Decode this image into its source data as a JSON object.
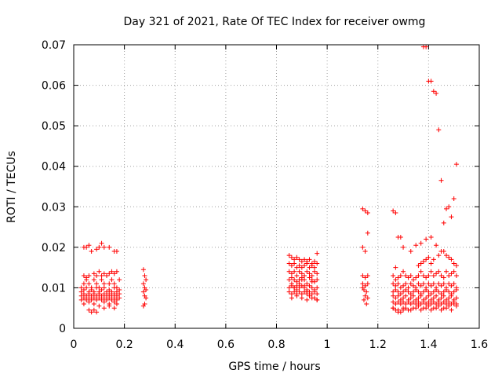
{
  "chart_data": {
    "type": "scatter",
    "title": "Day 321 of 2021, Rate Of TEC Index for receiver owmg",
    "xlabel": "GPS time / hours",
    "ylabel": "ROTI / TECUs",
    "xlim": [
      0,
      1.6
    ],
    "ylim": [
      0,
      0.07
    ],
    "x_ticks": [
      0,
      0.2,
      0.4,
      0.6,
      0.8,
      1,
      1.2,
      1.4,
      1.6
    ],
    "x_tick_labels": [
      "0",
      "0.2",
      "0.4",
      "0.6",
      "0.8",
      "1",
      "1.2",
      "1.4",
      "1.6"
    ],
    "y_ticks": [
      0,
      0.01,
      0.02,
      0.03,
      0.04,
      0.05,
      0.06,
      0.07
    ],
    "y_tick_labels": [
      "0",
      "0.01",
      "0.02",
      "0.03",
      "0.04",
      "0.05",
      "0.06",
      "0.07"
    ],
    "grid": true,
    "marker": "plus",
    "colors": {
      "points": "#ff0000",
      "grid": "#a0a0a0",
      "frame": "#000000"
    },
    "series": [
      {
        "x": [
          0.04,
          0.05,
          0.06,
          0.07,
          0.09,
          0.1,
          0.11,
          0.12,
          0.14,
          0.16,
          0.17,
          0.03,
          0.04,
          0.05,
          0.06,
          0.07,
          0.08,
          0.09,
          0.1,
          0.11,
          0.12,
          0.13,
          0.14,
          0.15,
          0.16,
          0.17,
          0.18,
          0.03,
          0.04,
          0.05,
          0.06,
          0.07,
          0.08,
          0.09,
          0.1,
          0.11,
          0.12,
          0.13,
          0.14,
          0.15,
          0.16,
          0.17,
          0.18,
          0.03,
          0.04,
          0.05,
          0.06,
          0.07,
          0.08,
          0.09,
          0.1,
          0.11,
          0.12,
          0.13,
          0.14,
          0.15,
          0.16,
          0.17,
          0.18,
          0.03,
          0.04,
          0.05,
          0.06,
          0.07,
          0.08,
          0.09,
          0.1,
          0.11,
          0.12,
          0.13,
          0.14,
          0.15,
          0.16,
          0.17,
          0.18,
          0.04,
          0.05,
          0.06,
          0.08,
          0.09,
          0.1,
          0.11,
          0.12,
          0.13,
          0.14,
          0.15,
          0.16,
          0.17,
          0.04,
          0.06,
          0.08,
          0.1,
          0.12,
          0.14,
          0.16,
          0.17,
          0.06,
          0.07,
          0.08,
          0.09,
          0.12,
          0.14,
          0.16,
          0.275,
          0.28,
          0.285,
          0.275,
          0.28,
          0.285,
          0.275,
          0.28,
          0.285,
          0.28,
          0.275
        ],
        "y": [
          0.02,
          0.02,
          0.0205,
          0.019,
          0.0195,
          0.02,
          0.021,
          0.02,
          0.02,
          0.019,
          0.019,
          0.01,
          0.011,
          0.012,
          0.011,
          0.01,
          0.012,
          0.011,
          0.01,
          0.012,
          0.011,
          0.013,
          0.011,
          0.012,
          0.011,
          0.01,
          0.012,
          0.009,
          0.0095,
          0.01,
          0.009,
          0.0095,
          0.009,
          0.01,
          0.009,
          0.0095,
          0.01,
          0.009,
          0.0095,
          0.009,
          0.01,
          0.009,
          0.0095,
          0.008,
          0.0085,
          0.008,
          0.0085,
          0.008,
          0.0085,
          0.008,
          0.0085,
          0.008,
          0.0085,
          0.008,
          0.0085,
          0.008,
          0.0085,
          0.008,
          0.0085,
          0.007,
          0.0075,
          0.007,
          0.0075,
          0.007,
          0.0075,
          0.007,
          0.0075,
          0.007,
          0.0075,
          0.007,
          0.0075,
          0.007,
          0.0075,
          0.007,
          0.0075,
          0.013,
          0.0125,
          0.013,
          0.0135,
          0.013,
          0.014,
          0.013,
          0.0135,
          0.013,
          0.0135,
          0.014,
          0.0135,
          0.014,
          0.006,
          0.0065,
          0.006,
          0.0055,
          0.0065,
          0.006,
          0.0065,
          0.006,
          0.0045,
          0.004,
          0.0045,
          0.004,
          0.005,
          0.0055,
          0.005,
          0.0145,
          0.013,
          0.012,
          0.011,
          0.01,
          0.0095,
          0.009,
          0.008,
          0.0075,
          0.006,
          0.0055
        ]
      },
      {
        "x": [
          0.85,
          0.86,
          0.87,
          0.88,
          0.89,
          0.9,
          0.91,
          0.92,
          0.93,
          0.94,
          0.95,
          0.96,
          0.85,
          0.86,
          0.87,
          0.88,
          0.89,
          0.9,
          0.91,
          0.92,
          0.93,
          0.94,
          0.95,
          0.96,
          0.85,
          0.86,
          0.87,
          0.88,
          0.89,
          0.9,
          0.91,
          0.92,
          0.93,
          0.94,
          0.95,
          0.96,
          0.85,
          0.86,
          0.87,
          0.88,
          0.89,
          0.9,
          0.91,
          0.92,
          0.93,
          0.94,
          0.95,
          0.96,
          0.85,
          0.86,
          0.87,
          0.88,
          0.89,
          0.9,
          0.91,
          0.92,
          0.93,
          0.94,
          0.95,
          0.96,
          0.85,
          0.86,
          0.87,
          0.88,
          0.89,
          0.9,
          0.91,
          0.92,
          0.93,
          0.94,
          0.95,
          0.96,
          0.86,
          0.88,
          0.9,
          0.92,
          0.94,
          0.96,
          0.86,
          0.87,
          0.88,
          0.89,
          0.9,
          0.91,
          0.92,
          0.93,
          0.94,
          0.95,
          0.96
        ],
        "y": [
          0.018,
          0.0175,
          0.017,
          0.0175,
          0.017,
          0.0165,
          0.017,
          0.0165,
          0.017,
          0.016,
          0.0165,
          0.0185,
          0.016,
          0.0155,
          0.016,
          0.015,
          0.0155,
          0.015,
          0.0155,
          0.016,
          0.015,
          0.0155,
          0.015,
          0.016,
          0.014,
          0.0135,
          0.014,
          0.013,
          0.014,
          0.0135,
          0.013,
          0.014,
          0.0135,
          0.013,
          0.014,
          0.0135,
          0.012,
          0.0125,
          0.012,
          0.0115,
          0.012,
          0.0125,
          0.012,
          0.011,
          0.0125,
          0.012,
          0.0115,
          0.012,
          0.01,
          0.0105,
          0.01,
          0.0095,
          0.01,
          0.0105,
          0.01,
          0.0095,
          0.0105,
          0.01,
          0.0095,
          0.01,
          0.009,
          0.0085,
          0.009,
          0.0085,
          0.009,
          0.0085,
          0.009,
          0.0085,
          0.009,
          0.0085,
          0.009,
          0.0085,
          0.0075,
          0.008,
          0.0075,
          0.007,
          0.0075,
          0.007,
          0.011,
          0.01,
          0.0105,
          0.011,
          0.012,
          0.0105,
          0.009,
          0.008,
          0.0115,
          0.0075,
          0.007
        ]
      },
      {
        "x": [
          1.14,
          1.15,
          1.16,
          1.14,
          1.15,
          1.16,
          1.14,
          1.15,
          1.16,
          1.14,
          1.15,
          1.16,
          1.145,
          1.155,
          1.15,
          1.16,
          1.145,
          1.155,
          1.14
        ],
        "y": [
          0.0295,
          0.029,
          0.0285,
          0.02,
          0.019,
          0.0235,
          0.013,
          0.0125,
          0.013,
          0.011,
          0.0105,
          0.011,
          0.0095,
          0.009,
          0.008,
          0.0075,
          0.007,
          0.006,
          0.01
        ]
      },
      {
        "x": [
          1.26,
          1.27,
          1.28,
          1.29,
          1.3,
          1.27,
          1.26,
          1.28,
          1.3,
          1.26,
          1.27,
          1.28,
          1.29,
          1.3,
          1.31,
          1.32,
          1.33,
          1.34,
          1.35,
          1.36,
          1.37,
          1.38,
          1.39,
          1.4,
          1.41,
          1.42,
          1.43,
          1.44,
          1.45,
          1.46,
          1.47,
          1.48,
          1.49,
          1.5,
          1.51,
          1.26,
          1.27,
          1.28,
          1.29,
          1.3,
          1.31,
          1.32,
          1.33,
          1.34,
          1.35,
          1.36,
          1.37,
          1.38,
          1.39,
          1.4,
          1.41,
          1.42,
          1.43,
          1.44,
          1.45,
          1.46,
          1.47,
          1.48,
          1.49,
          1.5,
          1.51,
          1.26,
          1.27,
          1.28,
          1.29,
          1.3,
          1.31,
          1.32,
          1.33,
          1.34,
          1.35,
          1.36,
          1.37,
          1.38,
          1.39,
          1.4,
          1.41,
          1.42,
          1.43,
          1.44,
          1.45,
          1.46,
          1.47,
          1.48,
          1.49,
          1.5,
          1.51,
          1.26,
          1.27,
          1.28,
          1.29,
          1.3,
          1.31,
          1.32,
          1.33,
          1.34,
          1.35,
          1.36,
          1.37,
          1.38,
          1.39,
          1.4,
          1.41,
          1.42,
          1.43,
          1.44,
          1.45,
          1.46,
          1.47,
          1.48,
          1.49,
          1.5,
          1.51,
          1.26,
          1.27,
          1.28,
          1.29,
          1.3,
          1.31,
          1.32,
          1.33,
          1.34,
          1.35,
          1.36,
          1.37,
          1.38,
          1.39,
          1.4,
          1.41,
          1.42,
          1.43,
          1.44,
          1.45,
          1.46,
          1.47,
          1.48,
          1.49,
          1.5,
          1.51,
          1.26,
          1.28,
          1.3,
          1.32,
          1.34,
          1.36,
          1.38,
          1.4,
          1.42,
          1.44,
          1.46,
          1.48,
          1.5,
          1.27,
          1.29,
          1.31,
          1.33,
          1.35,
          1.37,
          1.39,
          1.41,
          1.43,
          1.45,
          1.47,
          1.49,
          1.51,
          1.36,
          1.37,
          1.38,
          1.39,
          1.4,
          1.41,
          1.42,
          1.44,
          1.46,
          1.48,
          1.5,
          1.33,
          1.35,
          1.37,
          1.39,
          1.41,
          1.43,
          1.45,
          1.47,
          1.49,
          1.51,
          1.38,
          1.39,
          1.4,
          1.41,
          1.42,
          1.43,
          1.44,
          1.45,
          1.46,
          1.47,
          1.48,
          1.49,
          1.5,
          1.51
        ],
        "y": [
          0.029,
          0.0285,
          0.0225,
          0.0225,
          0.02,
          0.015,
          0.005,
          0.004,
          0.0045,
          0.013,
          0.012,
          0.0125,
          0.013,
          0.014,
          0.013,
          0.0125,
          0.013,
          0.012,
          0.0125,
          0.013,
          0.014,
          0.013,
          0.0125,
          0.013,
          0.014,
          0.013,
          0.0135,
          0.014,
          0.013,
          0.0125,
          0.014,
          0.013,
          0.0135,
          0.014,
          0.013,
          0.011,
          0.0105,
          0.011,
          0.01,
          0.0105,
          0.011,
          0.01,
          0.011,
          0.0105,
          0.01,
          0.011,
          0.0105,
          0.011,
          0.01,
          0.011,
          0.0105,
          0.011,
          0.01,
          0.011,
          0.0105,
          0.011,
          0.01,
          0.011,
          0.0105,
          0.011,
          0.01,
          0.009,
          0.0095,
          0.009,
          0.0085,
          0.009,
          0.0095,
          0.009,
          0.0085,
          0.009,
          0.0095,
          0.009,
          0.0085,
          0.009,
          0.0095,
          0.009,
          0.0085,
          0.009,
          0.0095,
          0.009,
          0.0085,
          0.009,
          0.0095,
          0.009,
          0.0085,
          0.009,
          0.0095,
          0.008,
          0.0075,
          0.008,
          0.007,
          0.0075,
          0.008,
          0.007,
          0.0075,
          0.008,
          0.007,
          0.0075,
          0.008,
          0.007,
          0.0075,
          0.008,
          0.007,
          0.0075,
          0.008,
          0.007,
          0.0075,
          0.008,
          0.007,
          0.0075,
          0.008,
          0.007,
          0.0075,
          0.0065,
          0.006,
          0.0065,
          0.006,
          0.0065,
          0.006,
          0.0065,
          0.006,
          0.0065,
          0.006,
          0.0065,
          0.006,
          0.0065,
          0.006,
          0.0065,
          0.006,
          0.0065,
          0.006,
          0.0065,
          0.006,
          0.0065,
          0.006,
          0.0065,
          0.006,
          0.0065,
          0.006,
          0.005,
          0.0045,
          0.005,
          0.0045,
          0.005,
          0.0055,
          0.005,
          0.0055,
          0.005,
          0.0055,
          0.005,
          0.0055,
          0.006,
          0.0045,
          0.004,
          0.005,
          0.0045,
          0.005,
          0.0045,
          0.005,
          0.0045,
          0.005,
          0.0045,
          0.005,
          0.0045,
          0.0055,
          0.0155,
          0.016,
          0.0165,
          0.017,
          0.0175,
          0.016,
          0.017,
          0.018,
          0.019,
          0.0175,
          0.016,
          0.019,
          0.0205,
          0.021,
          0.022,
          0.0225,
          0.0205,
          0.019,
          0.018,
          0.017,
          0.0155,
          0.0695,
          0.0695,
          0.061,
          0.061,
          0.0585,
          0.058,
          0.049,
          0.0365,
          0.026,
          0.0295,
          0.03,
          0.0275,
          0.032,
          0.0405
        ]
      }
    ]
  }
}
